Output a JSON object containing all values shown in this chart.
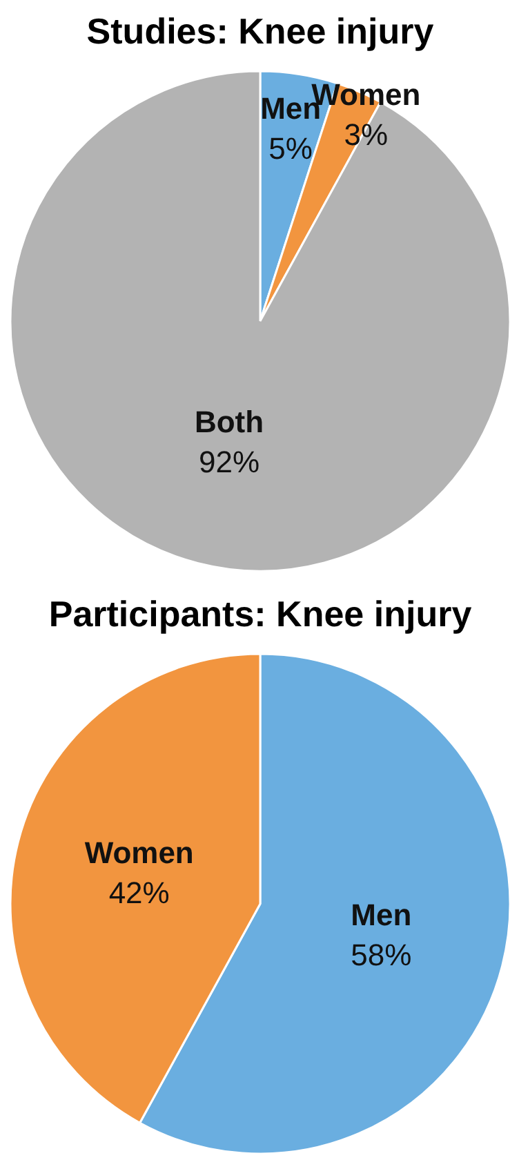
{
  "chart_data": [
    {
      "type": "pie",
      "title": "Studies: Knee injury",
      "categories": [
        "Men",
        "Women",
        "Both"
      ],
      "values": [
        5,
        3,
        92
      ],
      "colors": [
        "#6aaee0",
        "#f2953f",
        "#b3b3b3"
      ],
      "value_labels": [
        "5%",
        "3%",
        "92%"
      ]
    },
    {
      "type": "pie",
      "title": "Participants: Knee injury",
      "categories": [
        "Men",
        "Women"
      ],
      "values": [
        58,
        42
      ],
      "colors": [
        "#6aaee0",
        "#f2953f"
      ],
      "value_labels": [
        "58%",
        "42%"
      ]
    }
  ]
}
